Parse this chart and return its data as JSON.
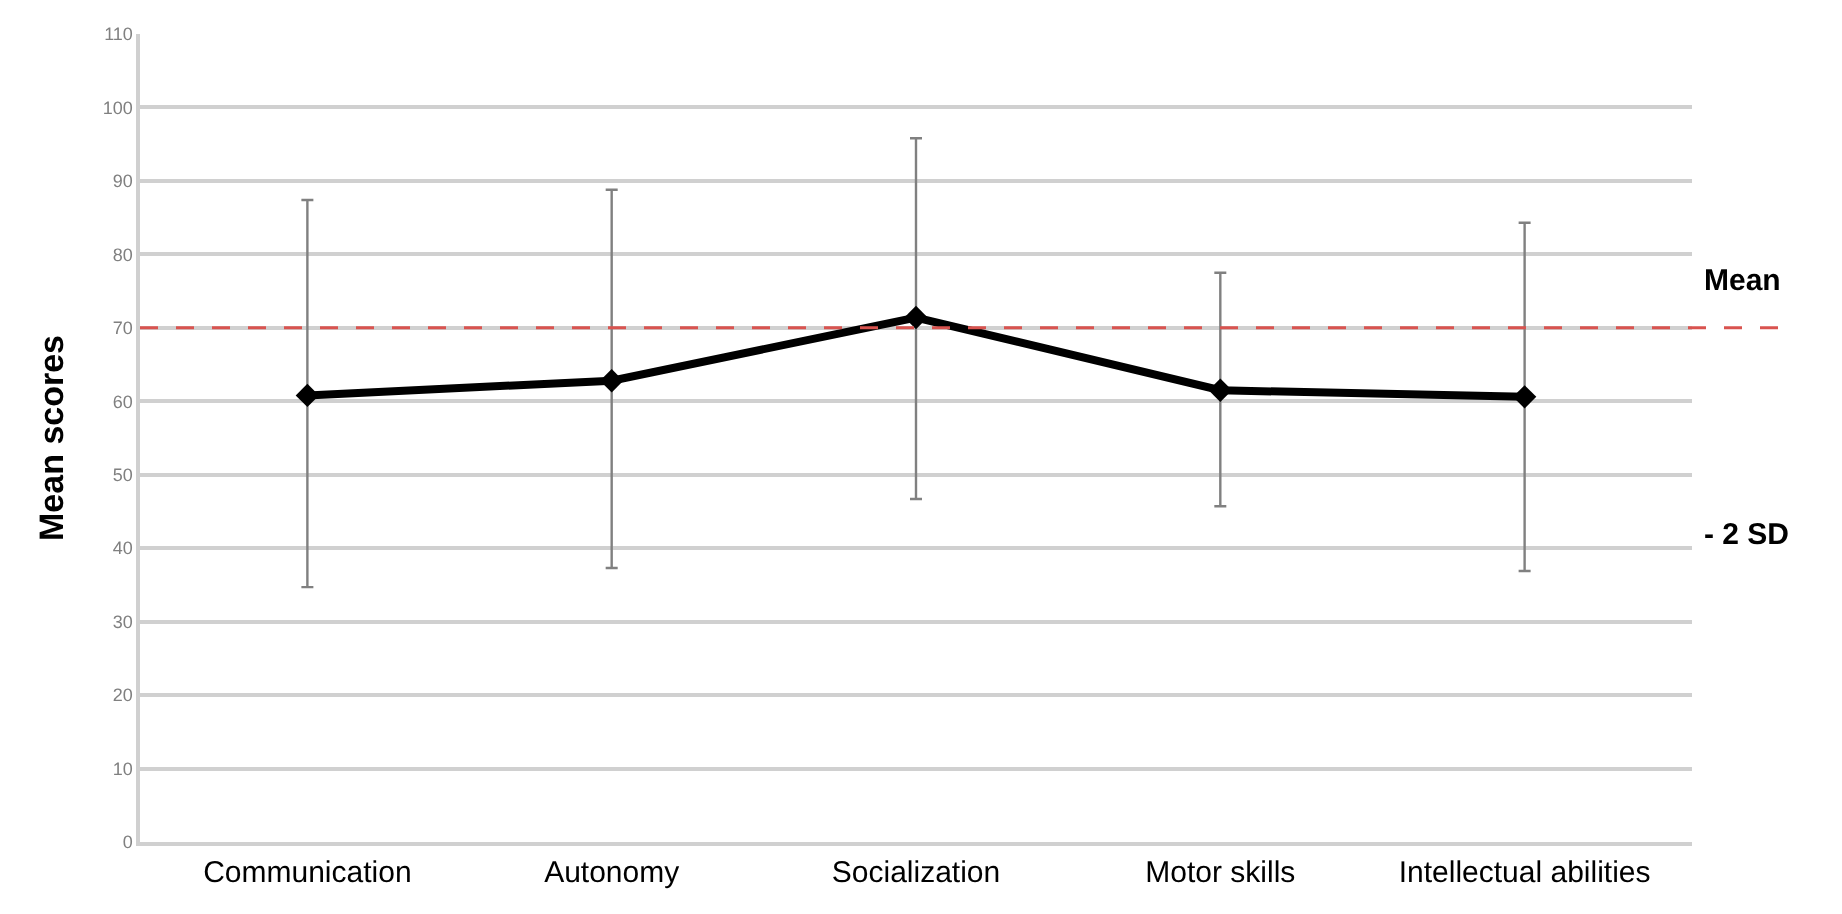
{
  "chart_data": {
    "type": "line",
    "ylabel": "Mean scores",
    "categories": [
      "Communication",
      "Autonomy",
      "Socialization",
      "Motor skills",
      "Intellectual abilities"
    ],
    "series": [
      {
        "color": "#000000",
        "values": [
          60.8,
          62.8,
          71.4,
          61.5,
          60.6
        ],
        "errors": [
          [
            34.7,
            87.4
          ],
          [
            37.3,
            88.8
          ],
          [
            46.7,
            95.8
          ],
          [
            45.7,
            77.5
          ],
          [
            36.9,
            84.3
          ]
        ]
      }
    ],
    "ylim": [
      0,
      110
    ],
    "yticks": [
      0,
      10,
      20,
      30,
      40,
      50,
      60,
      70,
      80,
      90,
      100,
      110
    ],
    "ref_lines": [
      {
        "axis": "y",
        "value": 70,
        "color": "#d9534f",
        "line_style": "dashed"
      }
    ],
    "annotations": [
      "Mean",
      "- 2 SD"
    ],
    "grid": "y",
    "marker": "diamond",
    "line_style": "solid"
  }
}
